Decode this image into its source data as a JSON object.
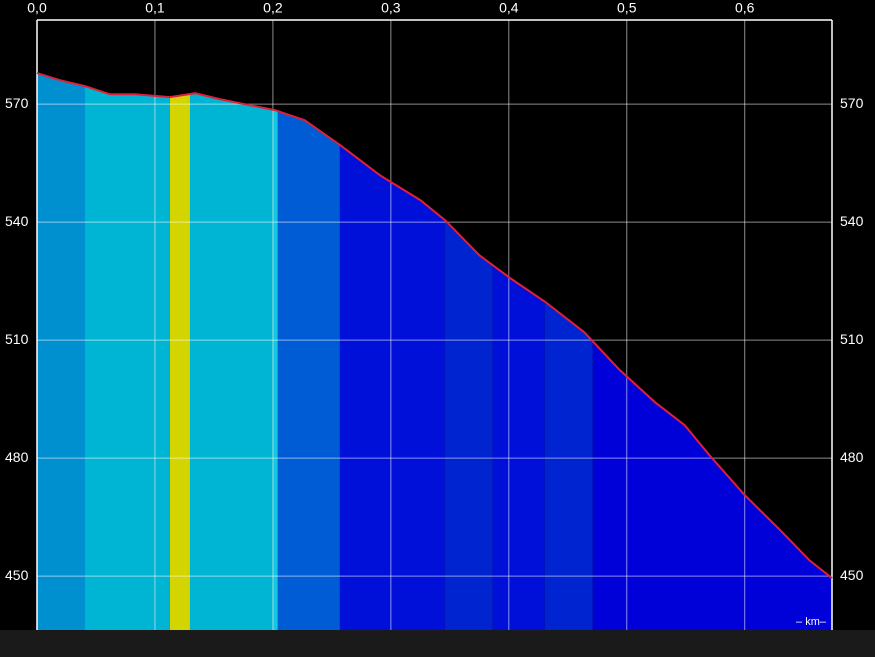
{
  "chart_data": {
    "type": "area",
    "x_unit_label": "– km–",
    "x": [
      0,
      0.0195,
      0.0407,
      0.0619,
      0.083,
      0.1127,
      0.134,
      0.155,
      0.176,
      0.2017,
      0.227,
      0.257,
      0.291,
      0.325,
      0.346,
      0.375,
      0.401,
      0.431,
      0.464,
      0.494,
      0.524,
      0.549,
      0.57,
      0.6,
      0.63,
      0.655,
      0.674
    ],
    "series": [
      {
        "color": "#e0203a",
        "values": [
          577.9,
          576.1,
          574.6,
          572.5,
          572.5,
          571.8,
          572.8,
          571.3,
          570,
          568.5,
          565.9,
          559.6,
          551.9,
          545.6,
          540.5,
          531.6,
          525.8,
          519.7,
          512,
          502.4,
          494.2,
          488.4,
          480.8,
          470.6,
          461.7,
          454,
          449.5
        ]
      }
    ],
    "bands": [
      {
        "from": 0,
        "to": 0.0407,
        "color": "#0090d0"
      },
      {
        "from": 0.0407,
        "to": 0.1127,
        "color": "#00b4d4"
      },
      {
        "from": 0.1127,
        "to": 0.1297,
        "color": "#d4d400"
      },
      {
        "from": 0.1297,
        "to": 0.2,
        "color": "#00b4d4"
      },
      {
        "from": 0.2,
        "to": 0.2042,
        "color": "#10c8e0"
      },
      {
        "from": 0.2042,
        "to": 0.2568,
        "color": "#005cd4"
      },
      {
        "from": 0.2568,
        "to": 0.3458,
        "color": "#0010d8"
      },
      {
        "from": 0.3458,
        "to": 0.3864,
        "color": "#0024d0"
      },
      {
        "from": 0.3864,
        "to": 0.4305,
        "color": "#0010d8"
      },
      {
        "from": 0.4305,
        "to": 0.4712,
        "color": "#0024d0"
      },
      {
        "from": 0.4712,
        "to": 0.674,
        "color": "#0000d8"
      }
    ],
    "xlim": [
      0,
      0.674
    ],
    "ylim": [
      436.3,
      591.4
    ],
    "xticks": [
      {
        "value": 0,
        "label": "0,0"
      },
      {
        "value": 0.1,
        "label": "0,1"
      },
      {
        "value": 0.2,
        "label": "0,2"
      },
      {
        "value": 0.3,
        "label": "0,3"
      },
      {
        "value": 0.4,
        "label": "0,4"
      },
      {
        "value": 0.5,
        "label": "0,5"
      },
      {
        "value": 0.6,
        "label": "0,6"
      }
    ],
    "yticks": [
      450,
      480,
      510,
      540,
      570
    ],
    "grid": true
  }
}
